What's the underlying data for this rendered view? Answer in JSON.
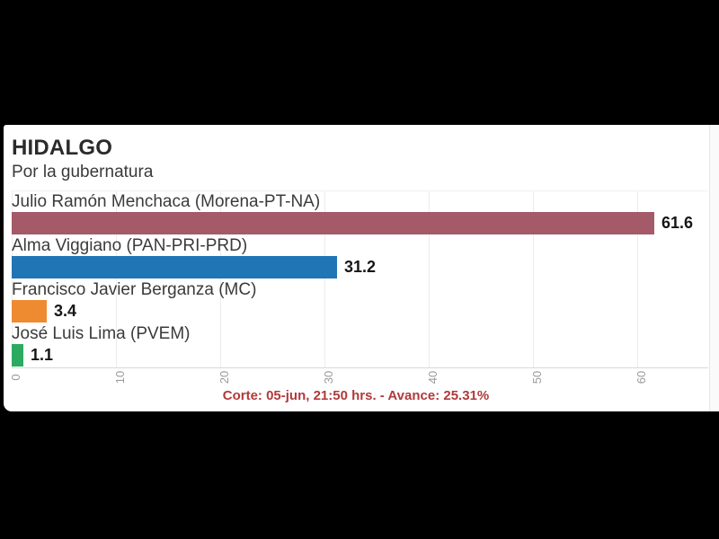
{
  "page": {
    "background_color": "#000000",
    "panel_background": "#ffffff"
  },
  "chart": {
    "title": "HIDALGO",
    "subtitle": "Por la gubernatura",
    "footer": "Corte: 05-jun, 21:50 hrs. - Avance: 25.31%",
    "footer_color": "#b03a3a"
  },
  "chart_data": {
    "type": "bar",
    "orientation": "horizontal",
    "title": "HIDALGO",
    "subtitle": "Por la gubernatura",
    "categories": [
      "Julio Ramón Menchaca (Morena-PT-NA)",
      "Alma Viggiano (PAN-PRI-PRD)",
      "Francisco Javier Berganza (MC)",
      "José Luis Lima (PVEM)"
    ],
    "values": [
      61.6,
      31.2,
      3.4,
      1.1
    ],
    "value_labels": [
      "61.6",
      "31.2",
      "3.4",
      "1.1"
    ],
    "bar_colors": [
      "#a45a69",
      "#2076b4",
      "#ee8b31",
      "#2cab60"
    ],
    "x_ticks": [
      0,
      10,
      20,
      30,
      40,
      50,
      60
    ],
    "xlim": [
      0,
      66.8
    ],
    "grid": true,
    "legend": false,
    "annotation": "Corte: 05-jun, 21:50 hrs. - Avance: 25.31%"
  }
}
